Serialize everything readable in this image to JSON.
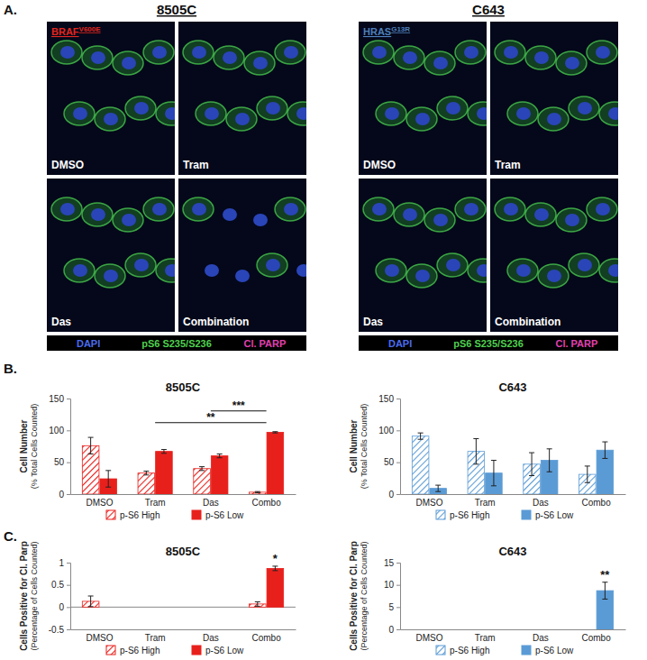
{
  "panel_labels": [
    "A.",
    "B.",
    "C."
  ],
  "microscopy": [
    {
      "title": "8505C",
      "mutation": "BRAF",
      "mutation_superscript": "V600E",
      "mutation_color": "#e3261f",
      "tiles": [
        "DMSO",
        "Tram",
        "Das",
        "Combination"
      ]
    },
    {
      "title": "C643",
      "mutation": "HRAS",
      "mutation_superscript": "G13R",
      "mutation_color": "#4f81bd",
      "tiles": [
        "DMSO",
        "Tram",
        "Das",
        "Combination"
      ]
    }
  ],
  "stains": [
    {
      "name": "DAPI",
      "color": "#4a6cf0"
    },
    {
      "name": "pS6 S235/S236",
      "color": "#4fd14f"
    },
    {
      "name": "Cl. PARP",
      "color": "#e040b0"
    }
  ],
  "chart_data": [
    {
      "type": "bar",
      "title": "8505C",
      "ylabel": [
        "Cell Number",
        "(% Total Cells Counted)"
      ],
      "categories": [
        "DMSO",
        "Tram",
        "Das",
        "Combo"
      ],
      "series": [
        {
          "name": "p-S6 High",
          "color": "#e8201c",
          "values": [
            76,
            33,
            40,
            3
          ],
          "errors": [
            13,
            3,
            3,
            1
          ]
        },
        {
          "name": "p-S6 Low",
          "color": "#e8201c",
          "values": [
            24,
            67,
            60,
            97
          ],
          "errors": [
            13,
            3,
            3,
            1
          ]
        }
      ],
      "ylim": [
        0,
        150
      ],
      "yticks": [
        0,
        50,
        100,
        150
      ],
      "legend": "bottom",
      "annotations": [
        {
          "text": "**",
          "from": "Tram",
          "to": "Combo"
        },
        {
          "text": "***",
          "from": "Das",
          "to": "Combo"
        }
      ]
    },
    {
      "type": "bar",
      "title": "C643",
      "ylabel": [
        "Cell Number",
        "(% Total Cells Counted)"
      ],
      "categories": [
        "DMSO",
        "Tram",
        "Das",
        "Combo"
      ],
      "series": [
        {
          "name": "p-S6 High",
          "color": "#5b9bd5",
          "values": [
            91,
            67,
            47,
            31
          ],
          "errors": [
            5,
            20,
            18,
            13
          ]
        },
        {
          "name": "p-S6 Low",
          "color": "#5b9bd5",
          "values": [
            9,
            33,
            53,
            69
          ],
          "errors": [
            5,
            20,
            18,
            13
          ]
        }
      ],
      "ylim": [
        0,
        150
      ],
      "yticks": [
        0,
        50,
        100,
        150
      ],
      "legend": "bottom"
    },
    {
      "type": "bar",
      "title": "8505C",
      "ylabel": [
        "Cells Positive for Cl. Parp",
        "(Percentage of Cells Counted)"
      ],
      "categories": [
        "DMSO",
        "Tram",
        "Das",
        "Combo"
      ],
      "series": [
        {
          "name": "p-S6 High",
          "color": "#e8201c",
          "values": [
            0.13,
            0,
            0,
            0.07
          ],
          "errors": [
            0.12,
            null,
            null,
            0.05
          ]
        },
        {
          "name": "p-S6 Low",
          "color": "#e8201c",
          "values": [
            0,
            0,
            0,
            0.87
          ],
          "errors": [
            null,
            null,
            null,
            0.05
          ]
        }
      ],
      "ylim": [
        -0.5,
        1
      ],
      "yticks": [
        -0.5,
        0,
        0.5,
        1
      ],
      "legend": "bottom",
      "annotations": [
        {
          "text": "*",
          "at": "Combo",
          "series": "p-S6 Low"
        }
      ]
    },
    {
      "type": "bar",
      "title": "C643",
      "ylabel": [
        "Cells Positive for Cl. Parp",
        "(Percentage of Cells Counted)"
      ],
      "categories": [
        "DMSO",
        "Tram",
        "Das",
        "Combo"
      ],
      "series": [
        {
          "name": "p-S6 High",
          "color": "#5b9bd5",
          "values": [
            0,
            0,
            0,
            0
          ],
          "errors": [
            null,
            null,
            null,
            null
          ]
        },
        {
          "name": "p-S6 Low",
          "color": "#5b9bd5",
          "values": [
            0,
            0,
            0,
            8.7
          ],
          "errors": [
            null,
            null,
            null,
            1.9
          ]
        }
      ],
      "ylim": [
        0,
        15
      ],
      "yticks": [
        0,
        5,
        10,
        15
      ],
      "legend": "bottom",
      "annotations": [
        {
          "text": "**",
          "at": "Combo",
          "series": "p-S6 Low"
        }
      ]
    }
  ]
}
